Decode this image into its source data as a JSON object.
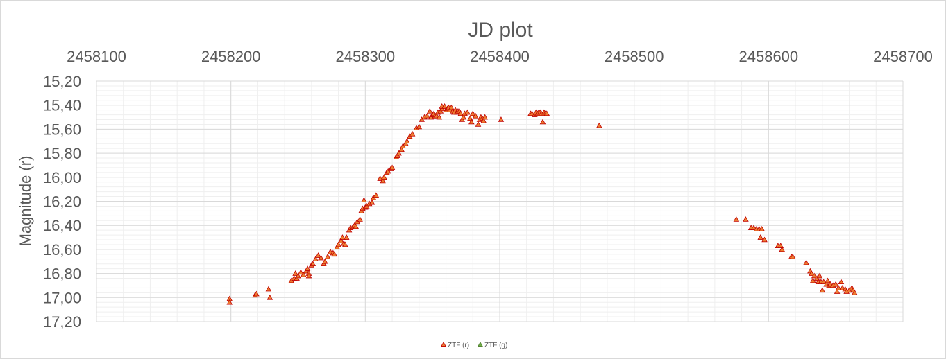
{
  "chart_data": {
    "type": "scatter",
    "title": "JD plot",
    "xlabel": "",
    "ylabel": "Magnitude (r)",
    "x_axis_position": "top",
    "xlim": [
      2458100,
      2458700
    ],
    "x_ticks": [
      "2458100",
      "2458200",
      "2458300",
      "2458400",
      "2458500",
      "2458600",
      "2458700"
    ],
    "ylim": [
      15.2,
      17.2
    ],
    "y_reversed": true,
    "y_ticks": [
      "15,20",
      "15,40",
      "15,60",
      "15,80",
      "16,00",
      "16,20",
      "16,40",
      "16,60",
      "16,80",
      "17,00",
      "17,20"
    ],
    "grid": true,
    "legend_position": "bottom",
    "series": [
      {
        "name": "ZTF (r)",
        "color": "#ed7d31",
        "edge_color": "#c00000",
        "marker": "triangle",
        "points": [
          [
            2458199,
            17.01
          ],
          [
            2458199,
            17.04
          ],
          [
            2458218,
            16.98
          ],
          [
            2458219,
            16.97
          ],
          [
            2458228,
            16.93
          ],
          [
            2458229,
            17.0
          ],
          [
            2458245,
            16.86
          ],
          [
            2458247,
            16.84
          ],
          [
            2458248,
            16.8
          ],
          [
            2458249,
            16.84
          ],
          [
            2458250,
            16.82
          ],
          [
            2458252,
            16.79
          ],
          [
            2458254,
            16.81
          ],
          [
            2458256,
            16.78
          ],
          [
            2458257,
            16.76
          ],
          [
            2458258,
            16.8
          ],
          [
            2458258,
            16.82
          ],
          [
            2458260,
            16.73
          ],
          [
            2458261,
            16.72
          ],
          [
            2458263,
            16.68
          ],
          [
            2458265,
            16.65
          ],
          [
            2458267,
            16.67
          ],
          [
            2458269,
            16.72
          ],
          [
            2458270,
            16.7
          ],
          [
            2458272,
            16.66
          ],
          [
            2458274,
            16.62
          ],
          [
            2458276,
            16.63
          ],
          [
            2458277,
            16.64
          ],
          [
            2458279,
            16.58
          ],
          [
            2458280,
            16.56
          ],
          [
            2458282,
            16.53
          ],
          [
            2458283,
            16.5
          ],
          [
            2458284,
            16.55
          ],
          [
            2458285,
            16.56
          ],
          [
            2458286,
            16.5
          ],
          [
            2458288,
            16.44
          ],
          [
            2458289,
            16.42
          ],
          [
            2458291,
            16.41
          ],
          [
            2458292,
            16.4
          ],
          [
            2458293,
            16.41
          ],
          [
            2458294,
            16.37
          ],
          [
            2458296,
            16.35
          ],
          [
            2458297,
            16.28
          ],
          [
            2458298,
            16.26
          ],
          [
            2458299,
            16.19
          ],
          [
            2458300,
            16.25
          ],
          [
            2458301,
            16.24
          ],
          [
            2458303,
            16.22
          ],
          [
            2458305,
            16.21
          ],
          [
            2458306,
            16.17
          ],
          [
            2458308,
            16.15
          ],
          [
            2458311,
            16.01
          ],
          [
            2458313,
            16.03
          ],
          [
            2458314,
            16.0
          ],
          [
            2458316,
            15.96
          ],
          [
            2458317,
            15.95
          ],
          [
            2458319,
            15.93
          ],
          [
            2458320,
            15.92
          ],
          [
            2458323,
            15.83
          ],
          [
            2458324,
            15.82
          ],
          [
            2458325,
            15.8
          ],
          [
            2458327,
            15.77
          ],
          [
            2458328,
            15.74
          ],
          [
            2458330,
            15.72
          ],
          [
            2458331,
            15.7
          ],
          [
            2458333,
            15.66
          ],
          [
            2458335,
            15.64
          ],
          [
            2458338,
            15.59
          ],
          [
            2458340,
            15.58
          ],
          [
            2458342,
            15.52
          ],
          [
            2458344,
            15.5
          ],
          [
            2458346,
            15.49
          ],
          [
            2458348,
            15.45
          ],
          [
            2458349,
            15.5
          ],
          [
            2458350,
            15.48
          ],
          [
            2458351,
            15.47
          ],
          [
            2458352,
            15.49
          ],
          [
            2458353,
            15.49
          ],
          [
            2458354,
            15.46
          ],
          [
            2458355,
            15.5
          ],
          [
            2458356,
            15.45
          ],
          [
            2458357,
            15.43
          ],
          [
            2458357,
            15.41
          ],
          [
            2458359,
            15.41
          ],
          [
            2458360,
            15.44
          ],
          [
            2458361,
            15.43
          ],
          [
            2458362,
            15.42
          ],
          [
            2458363,
            15.44
          ],
          [
            2458364,
            15.42
          ],
          [
            2458365,
            15.45
          ],
          [
            2458366,
            15.46
          ],
          [
            2458367,
            15.44
          ],
          [
            2458368,
            15.46
          ],
          [
            2458369,
            15.45
          ],
          [
            2458370,
            15.45
          ],
          [
            2458371,
            15.47
          ],
          [
            2458372,
            15.52
          ],
          [
            2458373,
            15.5
          ],
          [
            2458374,
            15.47
          ],
          [
            2458376,
            15.46
          ],
          [
            2458378,
            15.51
          ],
          [
            2458379,
            15.54
          ],
          [
            2458380,
            15.47
          ],
          [
            2458382,
            15.49
          ],
          [
            2458384,
            15.56
          ],
          [
            2458385,
            15.52
          ],
          [
            2458386,
            15.5
          ],
          [
            2458387,
            15.51
          ],
          [
            2458388,
            15.53
          ],
          [
            2458389,
            15.5
          ],
          [
            2458401,
            15.52
          ],
          [
            2458423,
            15.47
          ],
          [
            2458424,
            15.47
          ],
          [
            2458426,
            15.48
          ],
          [
            2458427,
            15.46
          ],
          [
            2458428,
            15.47
          ],
          [
            2458429,
            15.46
          ],
          [
            2458430,
            15.46
          ],
          [
            2458431,
            15.47
          ],
          [
            2458432,
            15.54
          ],
          [
            2458433,
            15.46
          ],
          [
            2458434,
            15.47
          ],
          [
            2458435,
            15.47
          ],
          [
            2458474,
            15.57
          ],
          [
            2458576,
            16.35
          ],
          [
            2458583,
            16.35
          ],
          [
            2458587,
            16.42
          ],
          [
            2458589,
            16.42
          ],
          [
            2458591,
            16.43
          ],
          [
            2458593,
            16.43
          ],
          [
            2458594,
            16.5
          ],
          [
            2458595,
            16.43
          ],
          [
            2458597,
            16.52
          ],
          [
            2458607,
            16.57
          ],
          [
            2458609,
            16.57
          ],
          [
            2458610,
            16.6
          ],
          [
            2458617,
            16.66
          ],
          [
            2458618,
            16.66
          ],
          [
            2458628,
            16.71
          ],
          [
            2458631,
            16.78
          ],
          [
            2458632,
            16.8
          ],
          [
            2458633,
            16.86
          ],
          [
            2458634,
            16.82
          ],
          [
            2458636,
            16.84
          ],
          [
            2458637,
            16.87
          ],
          [
            2458638,
            16.82
          ],
          [
            2458639,
            16.87
          ],
          [
            2458640,
            16.94
          ],
          [
            2458641,
            16.87
          ],
          [
            2458643,
            16.89
          ],
          [
            2458644,
            16.86
          ],
          [
            2458645,
            16.9
          ],
          [
            2458646,
            16.89
          ],
          [
            2458648,
            16.9
          ],
          [
            2458650,
            16.89
          ],
          [
            2458651,
            16.95
          ],
          [
            2458652,
            16.92
          ],
          [
            2458654,
            16.87
          ],
          [
            2458655,
            16.92
          ],
          [
            2458657,
            16.93
          ],
          [
            2458658,
            16.95
          ],
          [
            2458660,
            16.94
          ],
          [
            2458662,
            16.92
          ],
          [
            2458663,
            16.94
          ],
          [
            2458664,
            16.96
          ]
        ]
      },
      {
        "name": "ZTF (g)",
        "color": "#70ad47",
        "edge_color": "#507e32",
        "marker": "triangle",
        "points": []
      }
    ]
  }
}
